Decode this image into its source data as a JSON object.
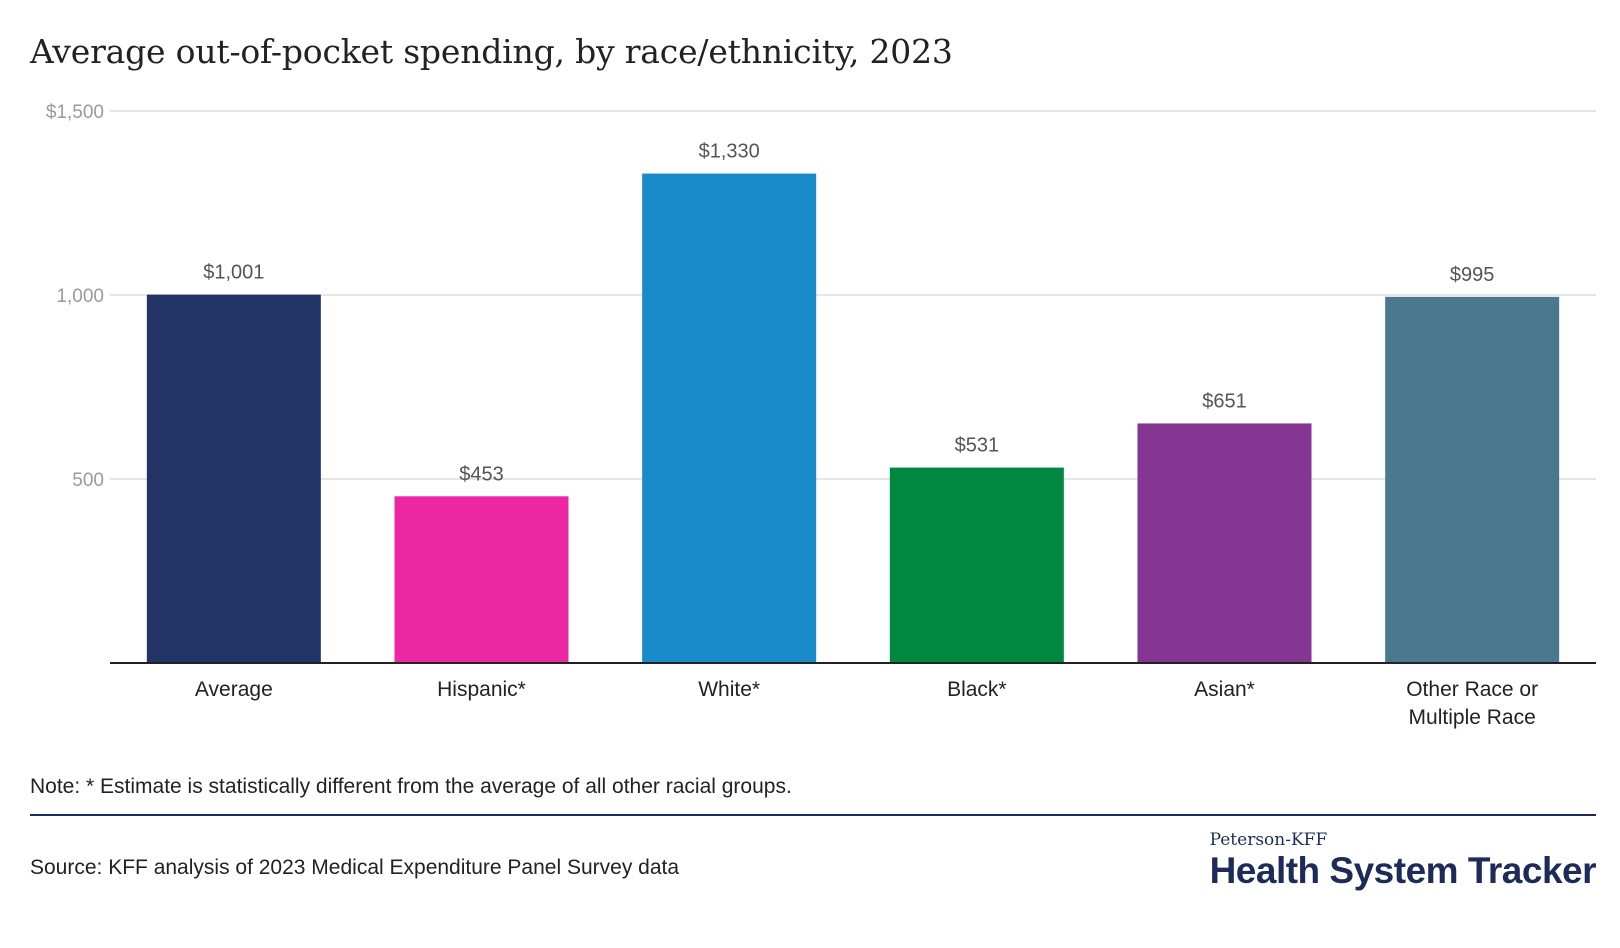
{
  "chart_data": {
    "type": "bar",
    "title": "Average out-of-pocket spending, by race/ethnicity, 2023",
    "categories": [
      "Average",
      "Hispanic*",
      "White*",
      "Black*",
      "Asian*",
      "Other Race or Multiple Race"
    ],
    "category_lines": [
      [
        "Average"
      ],
      [
        "Hispanic*"
      ],
      [
        "White*"
      ],
      [
        "Black*"
      ],
      [
        "Asian*"
      ],
      [
        "Other Race or",
        "Multiple Race"
      ]
    ],
    "values": [
      1001,
      453,
      1330,
      531,
      651,
      995
    ],
    "value_labels": [
      "$1,001",
      "$453",
      "$1,330",
      "$531",
      "$651",
      "$995"
    ],
    "colors": [
      "#223566",
      "#ec27a3",
      "#198bcb",
      "#008740",
      "#853592",
      "#49788f"
    ],
    "yticks": [
      500,
      1000,
      1500
    ],
    "ytick_labels": [
      "500",
      "1,000",
      "$1,500"
    ],
    "ylim": [
      0,
      1500
    ],
    "xlabel": "",
    "ylabel": "",
    "grid": true
  },
  "note": "Note: * Estimate is statistically different from the average of all other racial groups.",
  "source": "Source: KFF analysis of 2023 Medical Expenditure Panel Survey data",
  "brand": {
    "sub": "Peterson-KFF",
    "main": "Health System Tracker"
  }
}
